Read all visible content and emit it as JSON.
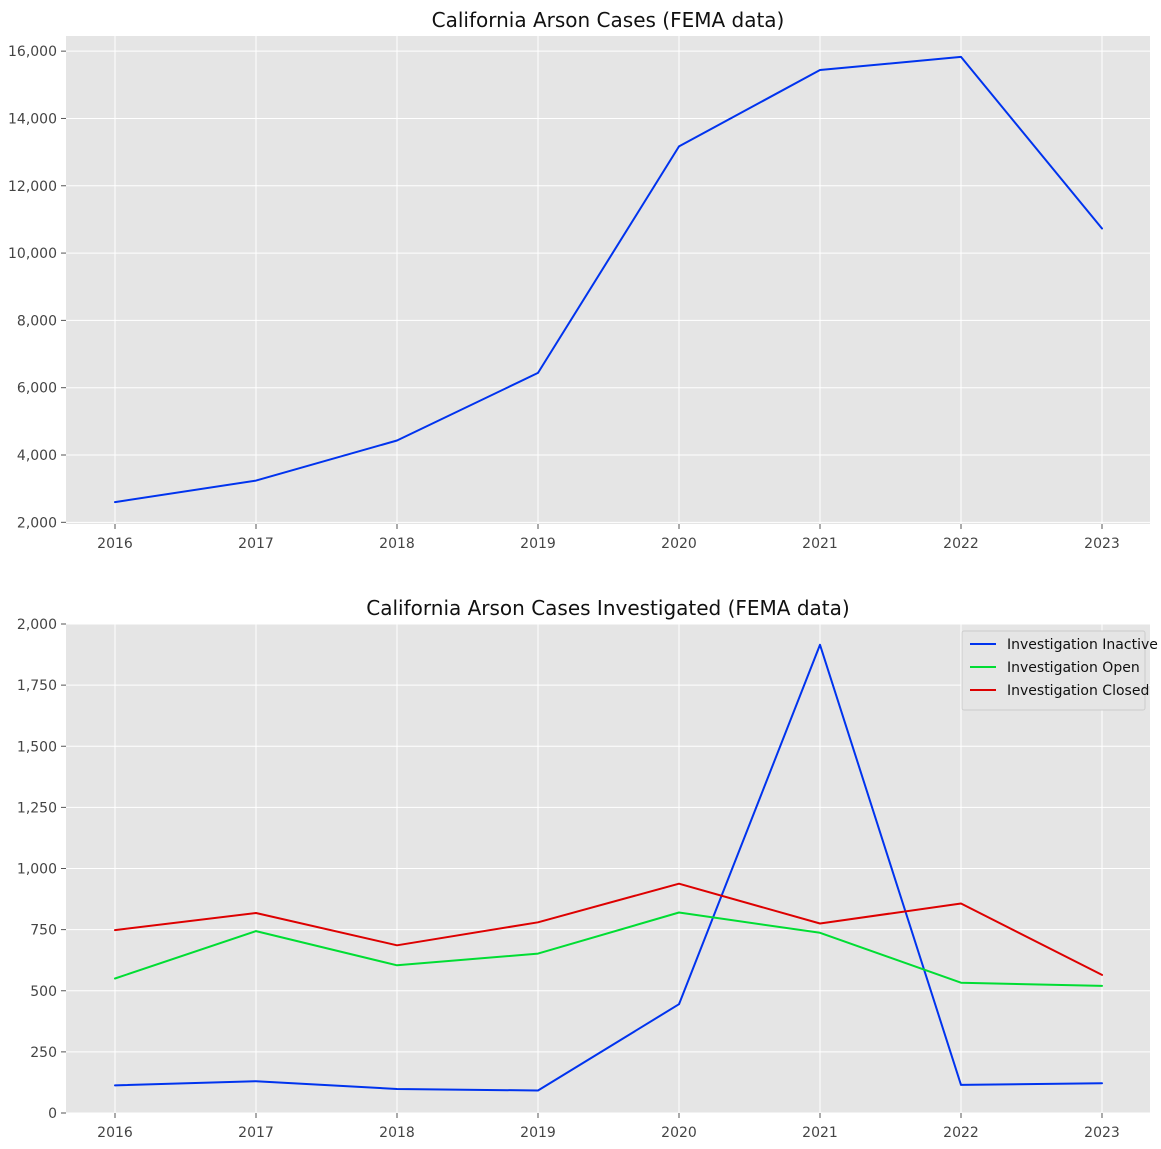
{
  "chart_data": [
    {
      "type": "line",
      "title": "California Arson Cases (FEMA data)",
      "xlabel": "",
      "ylabel": "",
      "x": [
        "2016",
        "2017",
        "2018",
        "2019",
        "2020",
        "2021",
        "2022",
        "2023"
      ],
      "series": [
        {
          "values": [
            2600,
            3240,
            4430,
            6440,
            13170,
            15440,
            15830,
            10730
          ],
          "color": "#0033ee"
        }
      ],
      "ylim": [
        1950,
        16450
      ],
      "yticks": [
        2000,
        4000,
        6000,
        8000,
        10000,
        12000,
        14000,
        16000
      ],
      "ytick_labels": [
        "2,000",
        "4,000",
        "6,000",
        "8,000",
        "10,000",
        "12,000",
        "14,000",
        "16,000"
      ],
      "grid": true,
      "legend": null
    },
    {
      "type": "line",
      "title": "California Arson Cases Investigated (FEMA data)",
      "xlabel": "",
      "ylabel": "",
      "x": [
        "2016",
        "2017",
        "2018",
        "2019",
        "2020",
        "2021",
        "2022",
        "2023"
      ],
      "series": [
        {
          "name": "Investigation Inactive",
          "values": [
            113,
            130,
            98,
            92,
            445,
            1915,
            115,
            122
          ],
          "color": "#0033ee"
        },
        {
          "name": "Investigation Open",
          "values": [
            550,
            744,
            604,
            652,
            820,
            737,
            533,
            520
          ],
          "color": "#00dd33"
        },
        {
          "name": "Investigation Closed",
          "values": [
            748,
            818,
            686,
            780,
            938,
            775,
            857,
            565
          ],
          "color": "#dd0000"
        }
      ],
      "ylim": [
        0,
        2000
      ],
      "yticks": [
        0,
        250,
        500,
        750,
        1000,
        1250,
        1500,
        1750,
        2000
      ],
      "ytick_labels": [
        "0",
        "250",
        "500",
        "750",
        "1,000",
        "1,250",
        "1,500",
        "1,750",
        "2,000"
      ],
      "grid": true,
      "legend": "top-right"
    }
  ]
}
